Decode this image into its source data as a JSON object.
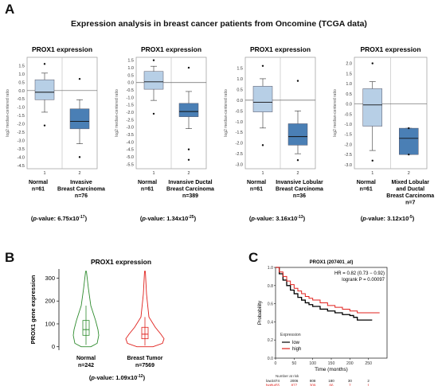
{
  "panel_letters": {
    "a": "A",
    "b": "B",
    "c": "C"
  },
  "main_title": "Expression analysis in breast cancer patients from Oncomine (TCGA data)",
  "chart_data": [
    {
      "type": "box",
      "title": "PROX1 expression",
      "ylabel": "log2 median-centered ratio",
      "ylim": [
        -4.7,
        2.0
      ],
      "yticks": [
        "1.5",
        "1.0",
        "0.5",
        "0.0",
        "-0.5",
        "-1.0",
        "-1.5",
        "-2.0",
        "-2.5",
        "-3.0",
        "-3.5",
        "-4.0",
        "-4.5"
      ],
      "ytick_values": [
        1.5,
        1.0,
        0.5,
        0.0,
        -0.5,
        -1.0,
        -1.5,
        -2.0,
        -2.5,
        -3.0,
        -3.5,
        -4.0,
        -4.5
      ],
      "ref_line": 0.0,
      "groups": [
        {
          "index": "1",
          "name_lines": [
            "Normal"
          ],
          "n": "n=61",
          "q1": -0.55,
          "median": -0.1,
          "q3": 0.65,
          "wlow": -1.3,
          "whigh": 1.05,
          "outliers": [
            1.6,
            -2.1
          ],
          "color": "#b7cfe6"
        },
        {
          "index": "2",
          "name_lines": [
            "Invasive",
            "Breast Carcinoma"
          ],
          "n": "n=76",
          "q1": -2.3,
          "median": -1.85,
          "q3": -1.1,
          "wlow": -3.2,
          "whigh": -0.55,
          "outliers": [
            -4.0,
            0.7
          ],
          "color": "#4a7fb5"
        }
      ],
      "pvalue": {
        "prefix": "(",
        "p": "p",
        "text": "-value: 6.75x10",
        "exp": "-17",
        "suffix": ")"
      }
    },
    {
      "type": "box",
      "title": "PROX1 expression",
      "ylabel": "log2 median-centered ratio",
      "ylim": [
        -5.8,
        1.7
      ],
      "yticks": [
        "1.5",
        "1.0",
        "0.5",
        "0.0",
        "-0.5",
        "-1.0",
        "-1.5",
        "-2.0",
        "-2.5",
        "-3.0",
        "-3.5",
        "-4.0",
        "-4.5",
        "-5.0",
        "-5.5"
      ],
      "ytick_values": [
        1.5,
        1.0,
        0.5,
        0.0,
        -0.5,
        -1.0,
        -1.5,
        -2.0,
        -2.5,
        -3.0,
        -3.5,
        -4.0,
        -4.5,
        -5.0,
        -5.5
      ],
      "ref_line": 0.0,
      "groups": [
        {
          "index": "1",
          "name_lines": [
            "Normal"
          ],
          "n": "n=61",
          "q1": -0.45,
          "median": 0.05,
          "q3": 0.75,
          "wlow": -1.2,
          "whigh": 1.1,
          "outliers": [
            1.5,
            -2.1
          ],
          "color": "#b7cfe6"
        },
        {
          "index": "2",
          "name_lines": [
            "Invansive Ductal",
            "Breast Carcinoma"
          ],
          "n": "n=389",
          "q1": -2.3,
          "median": -1.95,
          "q3": -1.4,
          "wlow": -3.1,
          "whigh": -0.6,
          "outliers": [
            -5.2,
            1.0,
            -4.5
          ],
          "color": "#4a7fb5"
        }
      ],
      "pvalue": {
        "prefix": "(",
        "p": "p",
        "text": "-value: 1.34x10",
        "exp": "-25",
        "suffix": ")"
      }
    },
    {
      "type": "box",
      "title": "PROX1 expression",
      "ylabel": "log2 median-centered ratio",
      "ylim": [
        -3.2,
        2.0
      ],
      "yticks": [
        "1.5",
        "1.0",
        "0.5",
        "0.0",
        "-0.5",
        "-1.0",
        "-1.5",
        "-2.0",
        "-2.5",
        "-3.0"
      ],
      "ytick_values": [
        1.5,
        1.0,
        0.5,
        0.0,
        -0.5,
        -1.0,
        -1.5,
        -2.0,
        -2.5,
        -3.0
      ],
      "ref_line": 0.0,
      "groups": [
        {
          "index": "1",
          "name_lines": [
            "Normal"
          ],
          "n": "n=61",
          "q1": -0.55,
          "median": -0.1,
          "q3": 0.65,
          "wlow": -1.3,
          "whigh": 1.0,
          "outliers": [
            1.6,
            -2.1
          ],
          "color": "#b7cfe6"
        },
        {
          "index": "2",
          "name_lines": [
            "Invansive Lobular",
            "Breast Carcinoma"
          ],
          "n": "n=36",
          "q1": -2.1,
          "median": -1.7,
          "q3": -1.1,
          "wlow": -2.5,
          "whigh": -0.5,
          "outliers": [
            0.9,
            -2.8
          ],
          "color": "#4a7fb5"
        }
      ],
      "pvalue": {
        "prefix": "(",
        "p": "p",
        "text": "-value: 3.16x10",
        "exp": "-13",
        "suffix": ")"
      }
    },
    {
      "type": "box",
      "title": "PROX1 expression",
      "ylabel": "log2 median-centered ratio",
      "ylim": [
        -3.2,
        2.3
      ],
      "yticks": [
        "2.0",
        "1.5",
        "1.0",
        "0.5",
        "0.0",
        "-0.5",
        "-1.0",
        "-1.5",
        "-2.0",
        "-2.5",
        "-3.0"
      ],
      "ytick_values": [
        2.0,
        1.5,
        1.0,
        0.5,
        0.0,
        -0.5,
        -1.0,
        -1.5,
        -2.0,
        -2.5,
        -3.0
      ],
      "ref_line": 0.0,
      "groups": [
        {
          "index": "1",
          "name_lines": [
            "Normal"
          ],
          "n": "n=61",
          "q1": -1.1,
          "median": -0.05,
          "q3": 0.75,
          "wlow": -2.3,
          "whigh": 1.1,
          "outliers": [
            2.0,
            -2.8
          ],
          "color": "#b7cfe6"
        },
        {
          "index": "2",
          "name_lines": [
            "Mixed Lobular",
            "and Ductal",
            "Breast Carcinoma"
          ],
          "n": "n=7",
          "q1": -2.5,
          "median": -1.7,
          "q3": -1.2,
          "wlow": -2.5,
          "whigh": -1.2,
          "outliers": [
            -1.2,
            -2.5
          ],
          "color": "#4a7fb5"
        }
      ],
      "pvalue": {
        "prefix": "(",
        "p": "p",
        "text": "-value: 3.12x10",
        "exp": "-5",
        "suffix": ")"
      }
    },
    {
      "type": "violin",
      "title": "PROX1 expression",
      "ylabel": "PROX1 gene expression",
      "ylim": [
        -15,
        340
      ],
      "yticks": [
        "0",
        "100",
        "200",
        "300"
      ],
      "ytick_values": [
        0,
        100,
        200,
        300
      ],
      "groups": [
        {
          "name": "Normal",
          "n": "n=242",
          "color": "#2e8b2e",
          "q1": 50,
          "median": 75,
          "q3": 115,
          "wlow": 8,
          "whigh": 180,
          "max": 330,
          "min": 0
        },
        {
          "name": "Breast Tumor",
          "n": "n=7569",
          "color": "#e0201c",
          "q1": 35,
          "median": 55,
          "q3": 85,
          "wlow": 5,
          "whigh": 130,
          "max": 330,
          "min": 0
        }
      ],
      "pvalue": {
        "prefix": "(",
        "p": "p",
        "text": "-value: 1.09x10",
        "exp": "-12",
        "suffix": ")"
      }
    },
    {
      "type": "line",
      "title": "PROX1 (207401_at)",
      "xlabel": "Time (months)",
      "ylabel": "Probability",
      "xlim": [
        0,
        300
      ],
      "ylim": [
        0,
        1.0
      ],
      "xticks": [
        0,
        50,
        100,
        150,
        200,
        250
      ],
      "yticks": [
        "0.0",
        "0.2",
        "0.4",
        "0.6",
        "0.8",
        "1.0"
      ],
      "ytick_values": [
        0.0,
        0.2,
        0.4,
        0.6,
        0.8,
        1.0
      ],
      "hr_text": "HR = 0.82 (0.73 − 0.92)",
      "logrank_text": "logrank P = 0.00097",
      "legend_title": "Expression",
      "series": [
        {
          "name": "low",
          "color": "#000000",
          "x": [
            0,
            10,
            20,
            30,
            40,
            50,
            60,
            70,
            80,
            90,
            100,
            120,
            140,
            160,
            180,
            200,
            210,
            220,
            240,
            260
          ],
          "y": [
            1.0,
            0.93,
            0.86,
            0.8,
            0.75,
            0.71,
            0.67,
            0.64,
            0.61,
            0.59,
            0.57,
            0.54,
            0.52,
            0.5,
            0.48,
            0.47,
            0.45,
            0.42,
            0.42,
            0.42
          ]
        },
        {
          "name": "high",
          "color": "#e0201c",
          "x": [
            0,
            10,
            20,
            30,
            40,
            50,
            60,
            70,
            80,
            90,
            100,
            120,
            140,
            160,
            180,
            200,
            220,
            240,
            260,
            280
          ],
          "y": [
            1.0,
            0.95,
            0.9,
            0.85,
            0.81,
            0.77,
            0.74,
            0.71,
            0.68,
            0.66,
            0.64,
            0.61,
            0.58,
            0.56,
            0.54,
            0.52,
            0.5,
            0.5,
            0.5,
            0.5
          ]
        }
      ],
      "risk_table": {
        "header": "Number at risk",
        "rows": [
          {
            "label": "low",
            "values": [
              "3474",
              "2006",
              "808",
              "180",
              "30",
              "2"
            ]
          },
          {
            "label": "high",
            "values": [
              "1455",
              "877",
              "309",
              "66",
              "7",
              "1"
            ]
          }
        ]
      }
    }
  ]
}
